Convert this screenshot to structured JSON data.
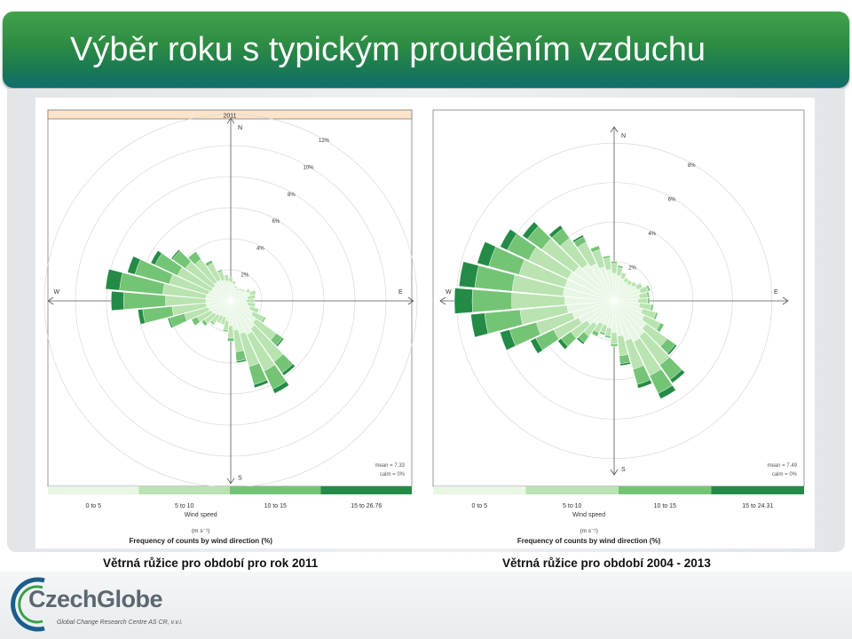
{
  "header": {
    "title": "Výběr roku s typickým prouděním vzduchu"
  },
  "captions": {
    "left": "Větrná růžice pro období pro rok 2011",
    "right": "Větrná růžice pro období 2004 - 2013"
  },
  "logo": {
    "text": "CzechGlobe",
    "subtitle": "Global Change Research Centre AS CR, v.v.i."
  },
  "colors": {
    "header_start": "#43a24d",
    "header_end": "#0f6e6e",
    "ws1": "#e8f6e4",
    "ws2": "#b9e3b0",
    "ws3": "#74c476",
    "ws4": "#238b45"
  },
  "chart_data": [
    {
      "type": "wind-rose",
      "strip_title": "2011",
      "directions": [
        "N",
        "E",
        "S",
        "W"
      ],
      "radial_ticks": [
        "2%",
        "4%",
        "6%",
        "8%",
        "10%",
        "12%"
      ],
      "radial_max": 12,
      "sectors_deg": [
        0,
        10,
        20,
        30,
        40,
        50,
        60,
        70,
        80,
        90,
        100,
        110,
        120,
        130,
        140,
        150,
        160,
        170,
        180,
        190,
        200,
        210,
        220,
        230,
        240,
        250,
        260,
        270,
        280,
        290,
        300,
        310,
        320,
        330,
        340,
        350
      ],
      "series": [
        {
          "name": "0 to 5",
          "values": [
            1.2,
            1.1,
            0.9,
            0.8,
            0.9,
            1.0,
            1.2,
            1.3,
            1.1,
            1.0,
            1.1,
            1.3,
            1.6,
            2.0,
            2.2,
            2.4,
            2.2,
            1.9,
            1.6,
            1.3,
            1.1,
            1.1,
            1.2,
            1.3,
            1.4,
            1.5,
            1.6,
            1.6,
            1.6,
            1.5,
            1.4,
            1.4,
            1.5,
            1.5,
            1.4,
            1.3
          ]
        },
        {
          "name": "5 to 10",
          "values": [
            0.3,
            0.2,
            0.1,
            0.1,
            0.1,
            0.1,
            0.2,
            0.4,
            0.5,
            0.5,
            0.5,
            0.6,
            0.8,
            1.6,
            2.6,
            2.6,
            2.2,
            1.4,
            0.8,
            0.6,
            0.5,
            0.5,
            0.6,
            0.8,
            1.0,
            1.6,
            2.2,
            2.6,
            2.8,
            2.6,
            2.4,
            2.2,
            1.8,
            1.2,
            0.6,
            0.4
          ]
        },
        {
          "name": "10 to 15",
          "values": [
            0,
            0,
            0,
            0,
            0,
            0,
            0,
            0,
            0,
            0,
            0,
            0,
            0.1,
            0.5,
            0.9,
            1.3,
            1.2,
            0.6,
            0.2,
            0.1,
            0,
            0,
            0.1,
            0.2,
            0.4,
            1.0,
            1.9,
            2.7,
            2.8,
            2.3,
            1.6,
            1.0,
            0.6,
            0.2,
            0.1,
            0
          ]
        },
        {
          "name": "15 to 26.76",
          "values": [
            0,
            0,
            0,
            0,
            0,
            0,
            0,
            0,
            0,
            0,
            0,
            0,
            0,
            0.1,
            0.2,
            0.3,
            0.2,
            0.1,
            0,
            0,
            0,
            0,
            0,
            0,
            0,
            0.1,
            0.3,
            0.8,
            0.9,
            0.5,
            0.3,
            0.1,
            0,
            0,
            0,
            0
          ]
        }
      ],
      "legend_title": "Wind speed",
      "legend_unit": "(m s⁻¹)",
      "xlabel": "Frequency of counts by wind direction (%)",
      "stats": {
        "mean": "mean = 7.33",
        "calm": "calm = 0%"
      }
    },
    {
      "type": "wind-rose",
      "strip_title": "",
      "directions": [
        "N",
        "E",
        "S",
        "W"
      ],
      "radial_ticks": [
        "2%",
        "4%",
        "6%",
        "8%"
      ],
      "radial_max": 9,
      "sectors_deg": [
        0,
        10,
        20,
        30,
        40,
        50,
        60,
        70,
        80,
        90,
        100,
        110,
        120,
        130,
        140,
        150,
        160,
        170,
        180,
        190,
        200,
        210,
        220,
        230,
        240,
        250,
        260,
        270,
        280,
        290,
        300,
        310,
        320,
        330,
        340,
        350
      ],
      "series": [
        {
          "name": "0 to 5",
          "values": [
            1.4,
            1.3,
            1.2,
            1.1,
            1.1,
            1.2,
            1.3,
            1.4,
            1.3,
            1.2,
            1.3,
            1.5,
            1.7,
            2.0,
            2.2,
            2.3,
            2.1,
            1.8,
            1.6,
            1.4,
            1.3,
            1.3,
            1.5,
            1.7,
            2.0,
            2.2,
            2.4,
            2.5,
            2.6,
            2.6,
            2.6,
            2.5,
            2.3,
            2.1,
            1.8,
            1.6
          ]
        },
        {
          "name": "5 to 10",
          "values": [
            0.5,
            0.4,
            0.3,
            0.2,
            0.2,
            0.2,
            0.3,
            0.4,
            0.4,
            0.5,
            0.6,
            0.7,
            0.9,
            1.3,
            1.8,
            1.9,
            1.5,
            1.0,
            0.6,
            0.4,
            0.4,
            0.5,
            0.7,
            1.0,
            1.4,
            1.9,
            2.4,
            2.7,
            2.6,
            2.4,
            2.2,
            2.0,
            1.6,
            1.2,
            0.9,
            0.6
          ]
        },
        {
          "name": "10 to 15",
          "values": [
            0.1,
            0.1,
            0,
            0,
            0,
            0,
            0,
            0.1,
            0.1,
            0.1,
            0.1,
            0.1,
            0.2,
            0.5,
            0.9,
            1.0,
            0.8,
            0.4,
            0.1,
            0.1,
            0.1,
            0.2,
            0.4,
            0.6,
            1.0,
            1.4,
            1.8,
            2.0,
            1.9,
            1.6,
            1.2,
            0.9,
            0.6,
            0.3,
            0.2,
            0.1
          ]
        },
        {
          "name": "15 to 24.31",
          "values": [
            0,
            0,
            0,
            0,
            0,
            0,
            0,
            0,
            0,
            0,
            0,
            0,
            0,
            0.1,
            0.2,
            0.3,
            0.2,
            0.1,
            0,
            0,
            0,
            0,
            0.1,
            0.2,
            0.3,
            0.5,
            0.7,
            0.9,
            0.8,
            0.6,
            0.4,
            0.3,
            0.2,
            0.1,
            0,
            0
          ]
        }
      ],
      "legend_title": "Wind speed",
      "legend_unit": "(m s⁻¹)",
      "xlabel": "Frequency of counts by wind direction (%)",
      "stats": {
        "mean": "mean = 7.49",
        "calm": "calm = 0%"
      }
    }
  ]
}
